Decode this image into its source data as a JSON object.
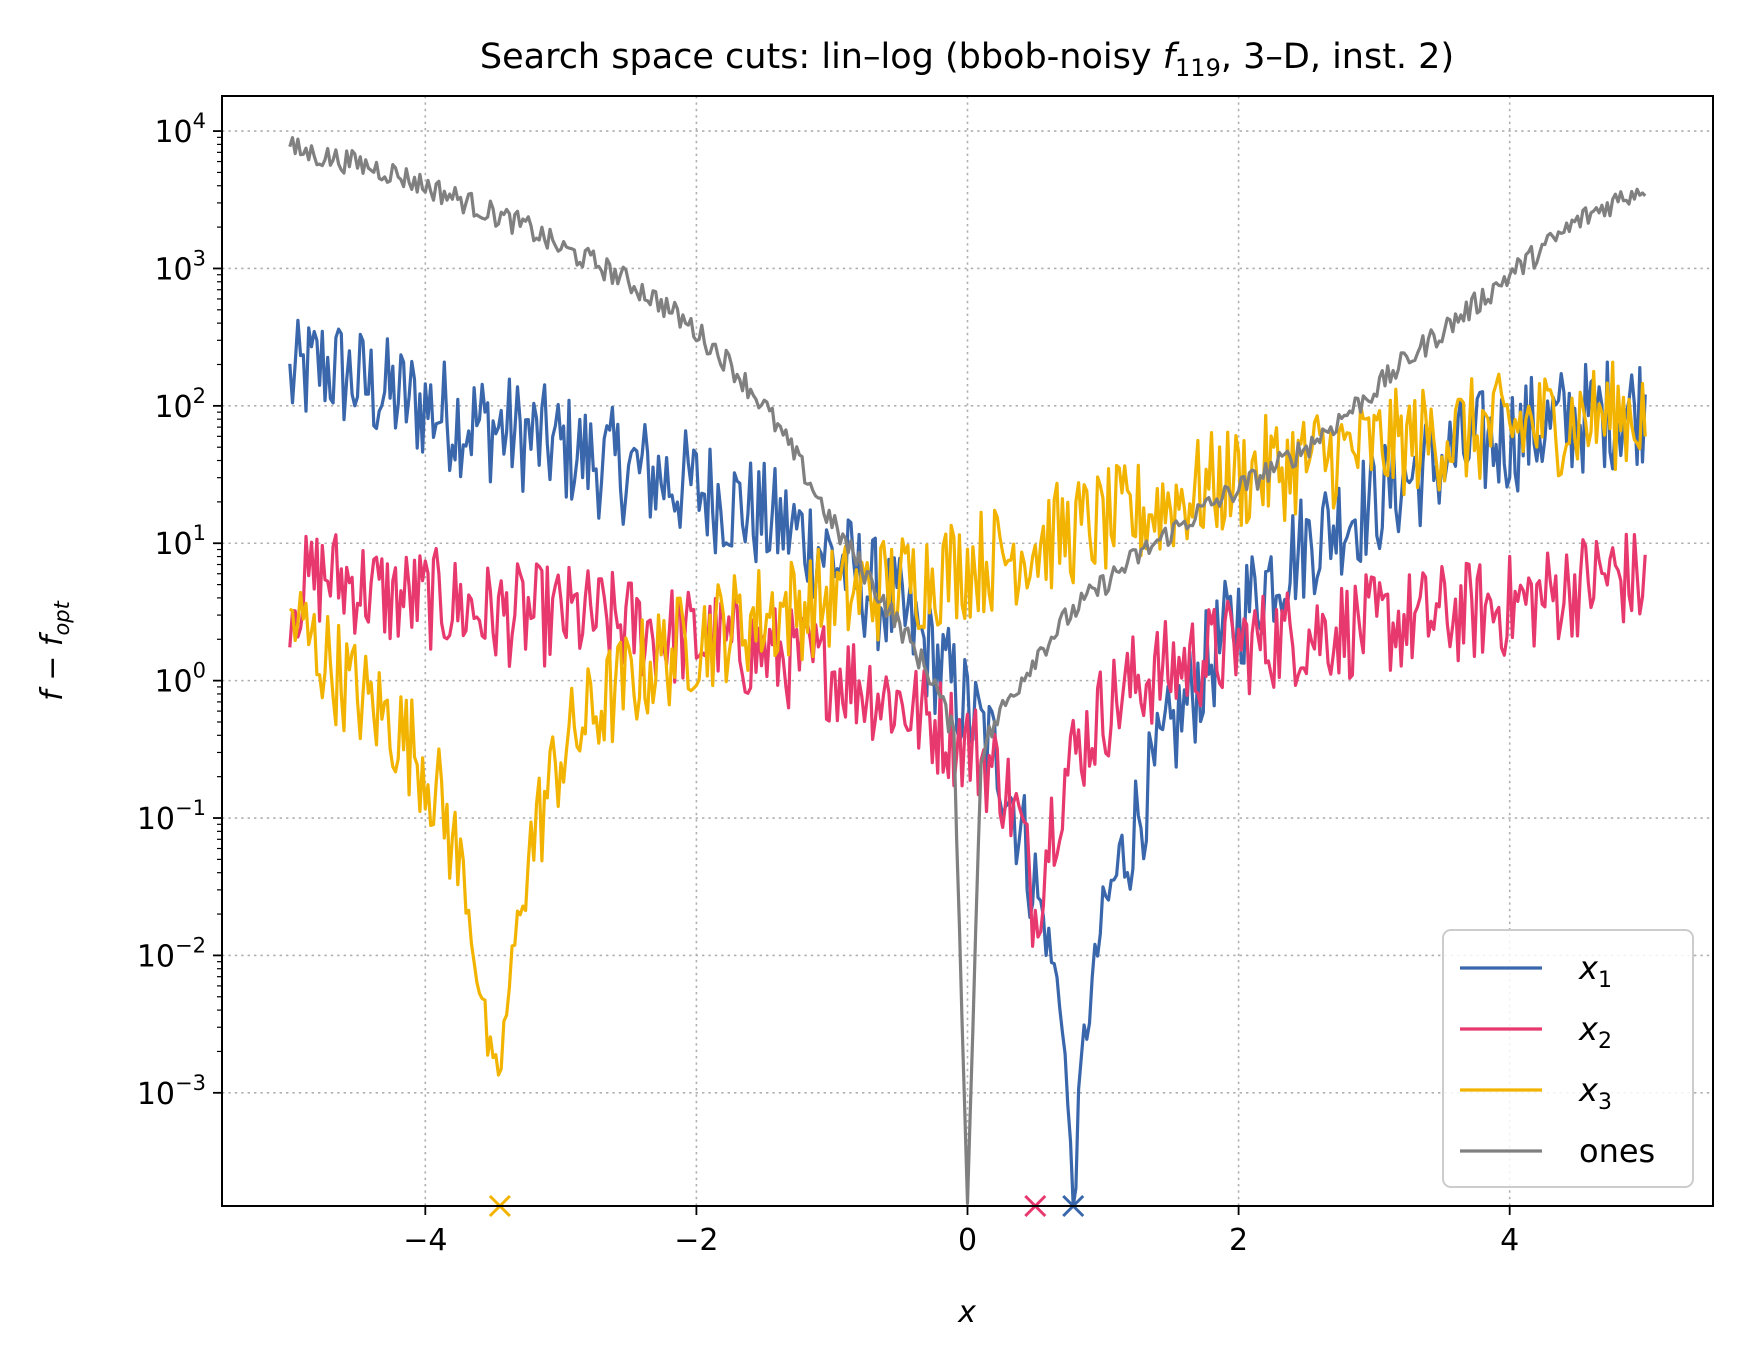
{
  "chart_data": {
    "type": "line",
    "title": "Search space cuts: lin–log (bbob-noisy f119, 3–D, inst. 2)",
    "title_parts": {
      "prefix": "Search space cuts: lin–log (bbob-noisy ",
      "func": "f",
      "func_sub": "119",
      "suffix": ", 3–D, inst. 2)"
    },
    "xlabel": "x",
    "ylabel": {
      "main": "f − f",
      "sub": "opt"
    },
    "xlim": [
      -5.5,
      5.5
    ],
    "ylim": [
      0.00015,
      18000
    ],
    "yscale": "log",
    "grid": true,
    "legend_position": "lower-right",
    "x_ticks": [
      {
        "value": -4,
        "label": "−4"
      },
      {
        "value": -2,
        "label": "−2"
      },
      {
        "value": 0,
        "label": "0"
      },
      {
        "value": 2,
        "label": "2"
      },
      {
        "value": 4,
        "label": "4"
      }
    ],
    "y_ticks": [
      {
        "value": 0.001,
        "base": "10",
        "exp": "−3"
      },
      {
        "value": 0.01,
        "base": "10",
        "exp": "−2"
      },
      {
        "value": 0.1,
        "base": "10",
        "exp": "−1"
      },
      {
        "value": 1,
        "base": "10",
        "exp": "0"
      },
      {
        "value": 10,
        "base": "10",
        "exp": "1"
      },
      {
        "value": 100,
        "base": "10",
        "exp": "2"
      },
      {
        "value": 1000,
        "base": "10",
        "exp": "3"
      },
      {
        "value": 10000,
        "base": "10",
        "exp": "4"
      }
    ],
    "series": [
      {
        "name": "x1",
        "label_main": "x",
        "label_sub": "1",
        "color": "#3a67ab",
        "x": [
          -5.0,
          -4.75,
          -4.5,
          -4.25,
          -4.0,
          -3.75,
          -3.5,
          -3.25,
          -3.0,
          -2.75,
          -2.5,
          -2.25,
          -2.0,
          -1.75,
          -1.5,
          -1.25,
          -1.0,
          -0.75,
          -0.5,
          -0.25,
          0.0,
          0.25,
          0.4,
          0.55,
          0.7,
          0.78,
          0.85,
          1.0,
          1.25,
          1.5,
          1.75,
          2.0,
          2.25,
          2.5,
          2.75,
          3.0,
          3.25,
          3.5,
          3.75,
          4.0,
          4.25,
          4.5,
          4.75,
          5.0
        ],
        "y": [
          150,
          200,
          150,
          120,
          100,
          80,
          70,
          60,
          50,
          40,
          35,
          30,
          25,
          20,
          15,
          12,
          8,
          5,
          3,
          1.5,
          0.6,
          0.25,
          0.08,
          0.02,
          0.004,
          0.00015,
          0.002,
          0.02,
          0.1,
          0.4,
          1.2,
          3,
          6,
          10,
          15,
          20,
          30,
          40,
          50,
          60,
          70,
          80,
          90,
          100
        ]
      },
      {
        "name": "x2",
        "label_main": "x",
        "label_sub": "2",
        "color": "#e8396e",
        "x": [
          -5.0,
          -4.75,
          -4.5,
          -4.25,
          -4.0,
          -3.75,
          -3.5,
          -3.25,
          -3.0,
          -2.75,
          -2.5,
          -2.25,
          -2.0,
          -1.75,
          -1.5,
          -1.25,
          -1.0,
          -0.75,
          -0.5,
          -0.25,
          0.0,
          0.25,
          0.4,
          0.5,
          0.6,
          0.75,
          1.0,
          1.25,
          1.5,
          1.75,
          2.0,
          2.25,
          2.5,
          2.75,
          3.0,
          3.25,
          3.5,
          3.75,
          4.0,
          4.25,
          4.5,
          4.75,
          5.0
        ],
        "y": [
          4,
          6,
          5,
          4,
          4,
          3.5,
          3,
          3,
          3,
          2.8,
          2.5,
          2.2,
          2,
          1.8,
          1.6,
          1.4,
          1.2,
          0.9,
          0.7,
          0.5,
          0.35,
          0.2,
          0.08,
          0.02,
          0.08,
          0.25,
          0.6,
          1,
          1.2,
          1.5,
          1.8,
          2,
          2.2,
          2.4,
          2.5,
          2.7,
          3,
          3.2,
          3.5,
          4,
          5,
          6,
          5
        ]
      },
      {
        "name": "x3",
        "label_main": "x",
        "label_sub": "3",
        "color": "#f2b400",
        "x": [
          -5.0,
          -4.75,
          -4.5,
          -4.25,
          -4.0,
          -3.85,
          -3.7,
          -3.6,
          -3.5,
          -3.45,
          -3.35,
          -3.25,
          -3.1,
          -3.0,
          -2.75,
          -2.5,
          -2.25,
          -2.0,
          -1.75,
          -1.5,
          -1.25,
          -1.0,
          -0.75,
          -0.5,
          -0.25,
          0.0,
          0.25,
          0.5,
          0.75,
          1.0,
          1.25,
          1.5,
          1.75,
          2.0,
          2.25,
          2.5,
          2.75,
          3.0,
          3.25,
          3.5,
          3.75,
          4.0,
          4.25,
          4.5,
          4.75,
          5.0
        ],
        "y": [
          3,
          1.5,
          0.8,
          0.5,
          0.25,
          0.1,
          0.03,
          0.006,
          0.0012,
          0.0015,
          0.01,
          0.05,
          0.15,
          0.3,
          0.6,
          1,
          1.5,
          2,
          2.5,
          3,
          3.5,
          4,
          4.5,
          5,
          6,
          7,
          8,
          10,
          12,
          14,
          16,
          20,
          25,
          30,
          35,
          40,
          45,
          50,
          55,
          60,
          65,
          70,
          75,
          80,
          85,
          90
        ]
      },
      {
        "name": "ones",
        "label_main": "ones",
        "label_sub": "",
        "color": "#808080",
        "x": [
          -5.0,
          -4.75,
          -4.5,
          -4.25,
          -4.0,
          -3.75,
          -3.5,
          -3.25,
          -3.0,
          -2.75,
          -2.5,
          -2.25,
          -2.0,
          -1.75,
          -1.5,
          -1.25,
          -1.0,
          -0.75,
          -0.5,
          -0.25,
          -0.1,
          0.0,
          0.1,
          0.25,
          0.5,
          0.75,
          1.0,
          1.25,
          1.5,
          1.75,
          2.0,
          2.25,
          2.5,
          2.75,
          3.0,
          3.25,
          3.5,
          3.75,
          4.0,
          4.25,
          4.5,
          4.75,
          5.0
        ],
        "y": [
          7500,
          6500,
          5800,
          5000,
          4000,
          3200,
          2500,
          2000,
          1400,
          1100,
          800,
          550,
          350,
          200,
          100,
          40,
          14,
          6,
          2.5,
          1,
          0.4,
          0.00015,
          0.3,
          0.6,
          1.5,
          3,
          5,
          8,
          12,
          18,
          25,
          35,
          50,
          80,
          130,
          220,
          350,
          550,
          900,
          1400,
          2200,
          3000,
          4000
        ]
      }
    ],
    "optimum_markers": [
      {
        "series": "x3",
        "x": -3.45
      },
      {
        "series": "x2",
        "x": 0.5
      },
      {
        "series": "x1",
        "x": 0.78
      }
    ]
  }
}
